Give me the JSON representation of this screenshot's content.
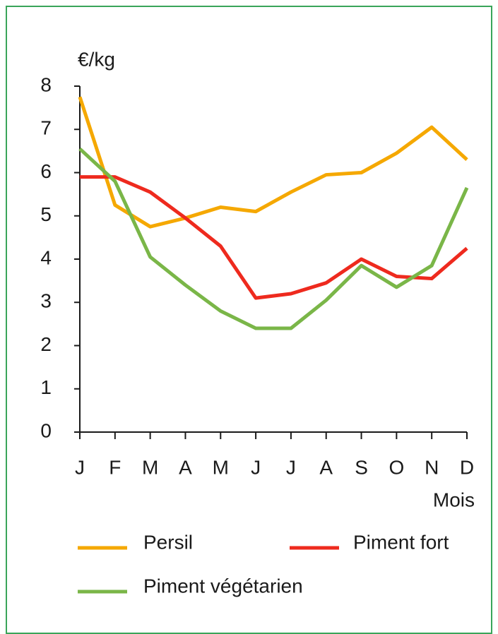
{
  "chart_data": {
    "type": "line",
    "y_label": "€/kg",
    "x_label": "Mois",
    "categories": [
      "J",
      "F",
      "M",
      "A",
      "M",
      "J",
      "J",
      "A",
      "S",
      "O",
      "N",
      "D"
    ],
    "series": [
      {
        "name": "Persil",
        "color": "#f5a800",
        "values": [
          7.75,
          5.25,
          4.75,
          4.95,
          5.2,
          5.1,
          5.55,
          5.95,
          6.0,
          6.45,
          7.05,
          6.3
        ]
      },
      {
        "name": "Piment fort",
        "color": "#ee2a1e",
        "values": [
          5.9,
          5.9,
          5.55,
          4.95,
          4.3,
          3.1,
          3.2,
          3.45,
          4.0,
          3.6,
          3.55,
          4.25
        ]
      },
      {
        "name": "Piment végétarien",
        "color": "#7ab648",
        "values": [
          6.55,
          5.8,
          4.05,
          3.4,
          2.8,
          2.4,
          2.4,
          3.05,
          3.85,
          3.35,
          3.85,
          5.65
        ]
      }
    ],
    "ylim": [
      0,
      8
    ],
    "yticks": [
      0,
      1,
      2,
      3,
      4,
      5,
      6,
      7,
      8
    ]
  }
}
